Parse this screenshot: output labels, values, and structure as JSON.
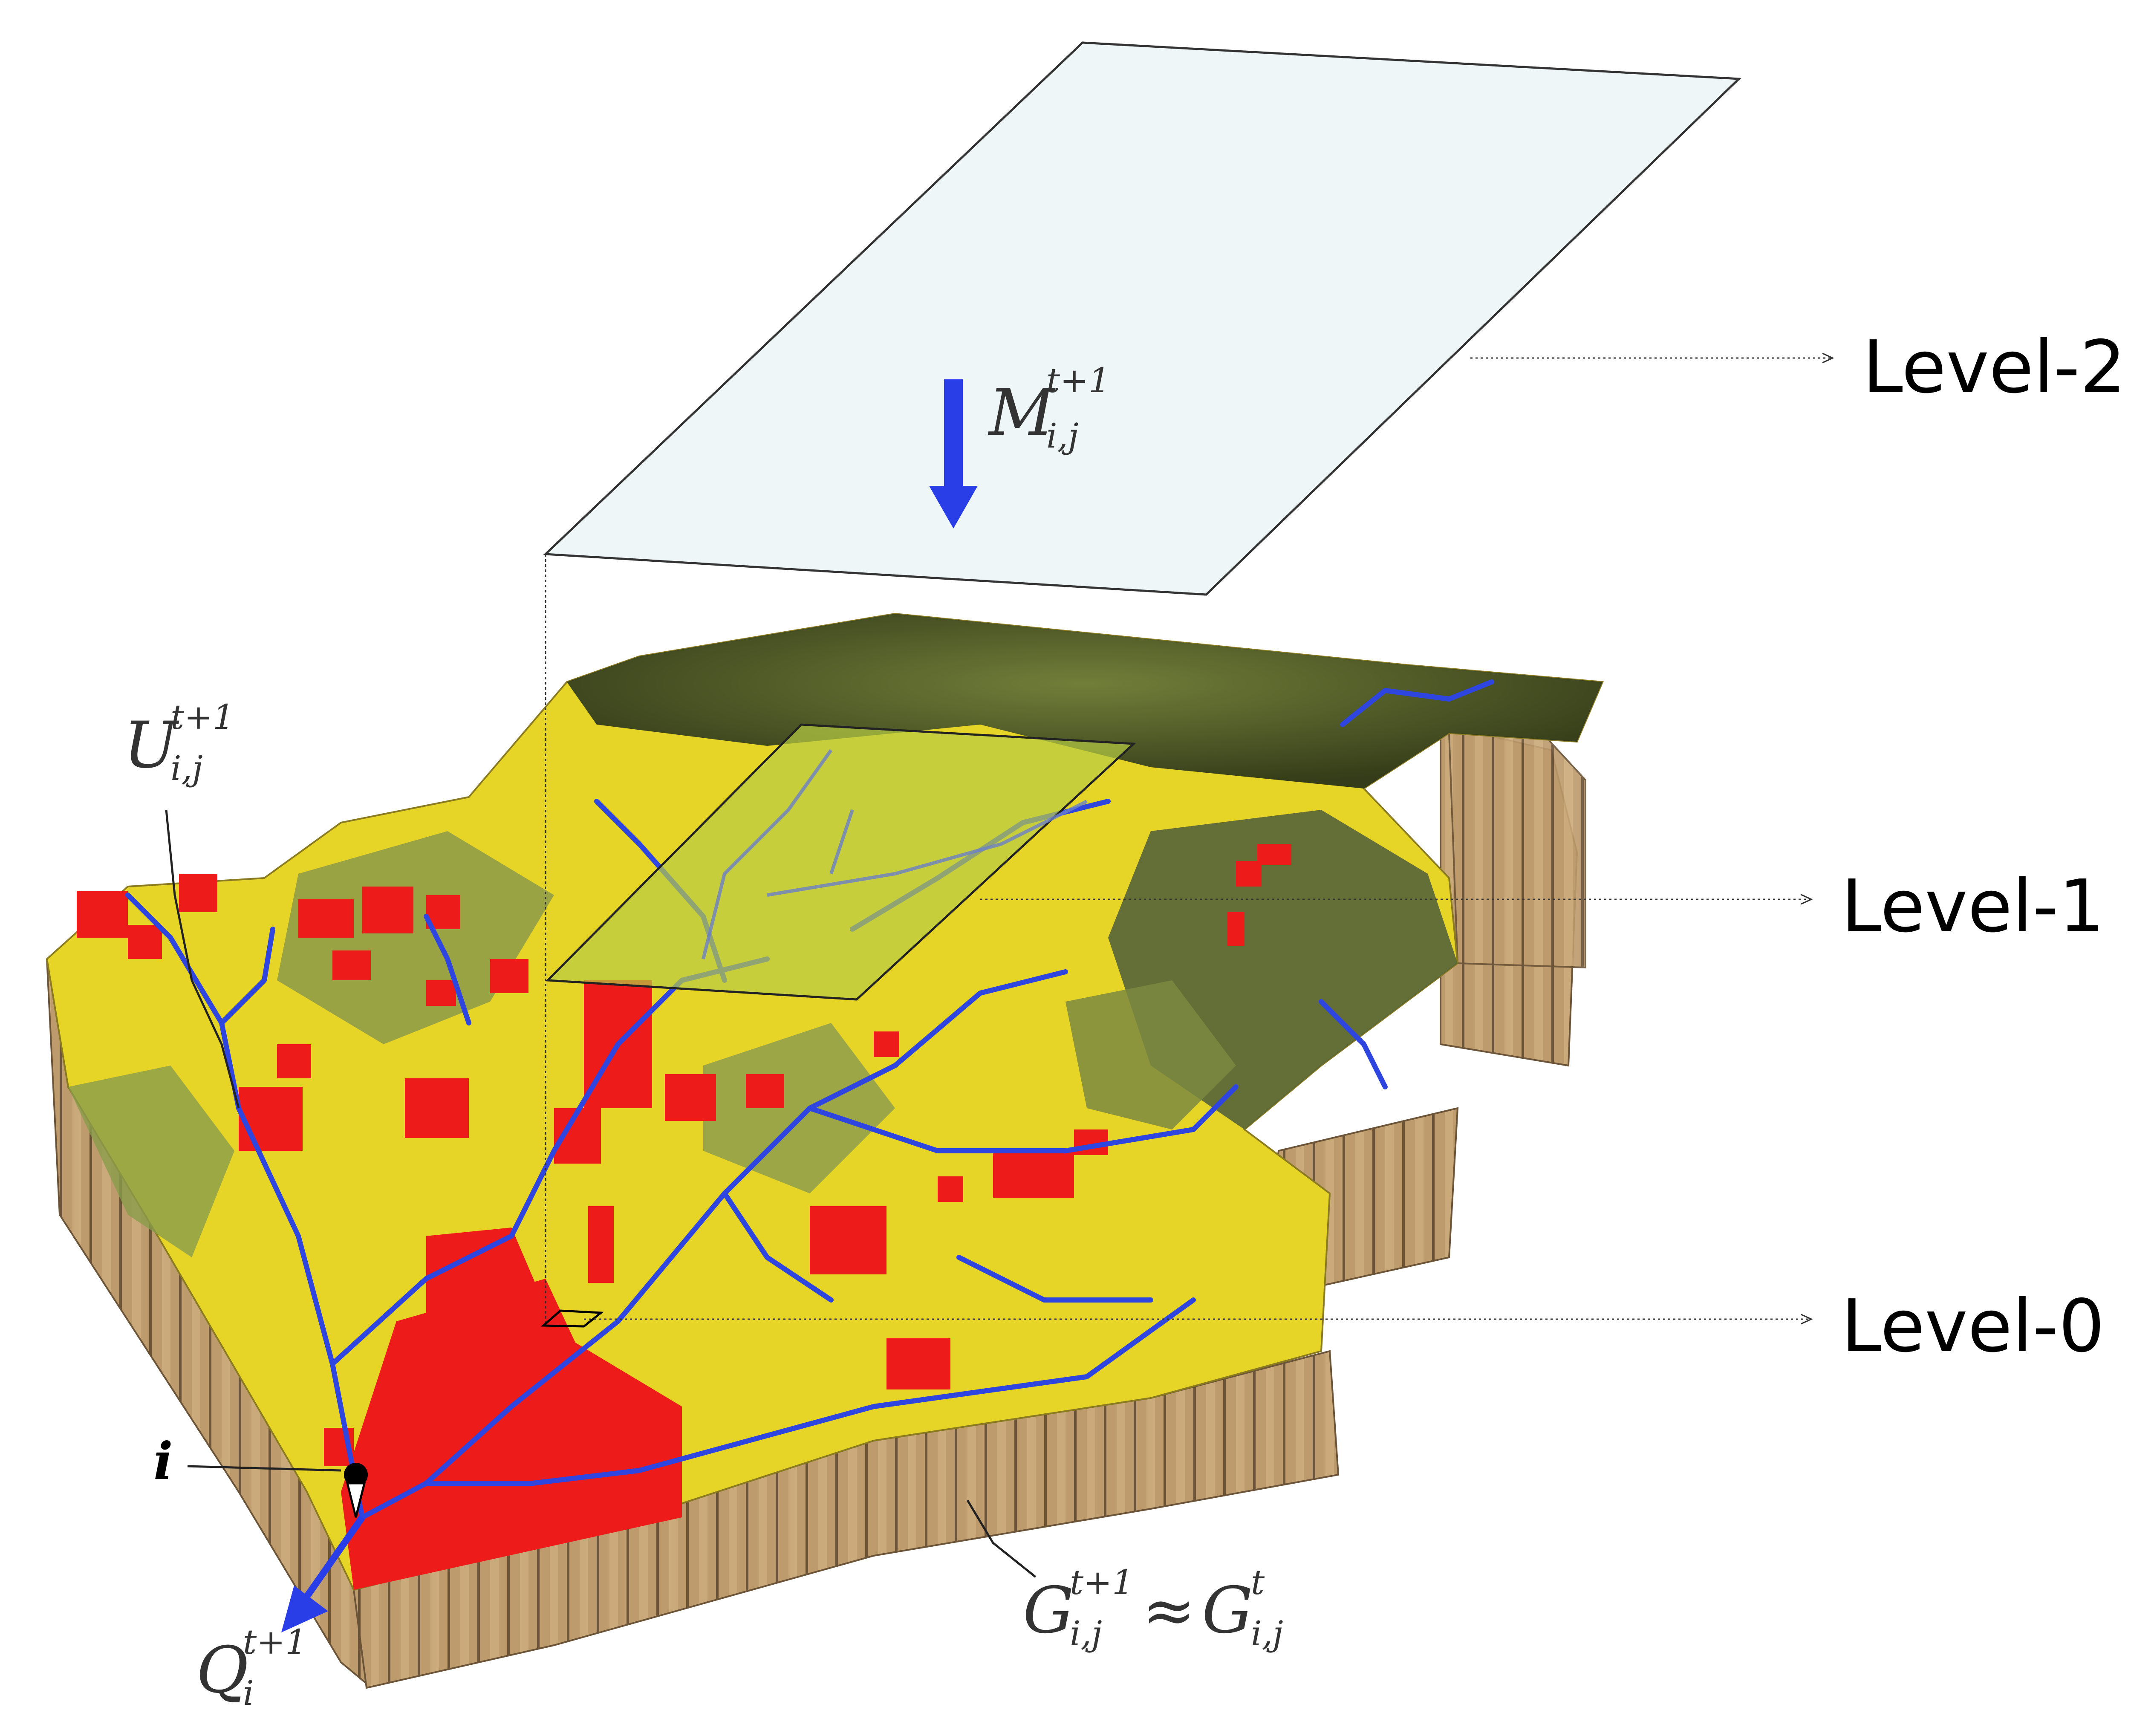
{
  "levels": {
    "level2": "Level-2",
    "level1": "Level-1",
    "level0": "Level-0"
  },
  "symbols": {
    "M": {
      "base": "M",
      "sup": "t+1",
      "sub": "i,j"
    },
    "U": {
      "base": "U",
      "sup": "t+1",
      "sub": "i,j"
    },
    "Q": {
      "base": "Q",
      "sup": "t+1",
      "sub": "i"
    },
    "G_lhs": {
      "base": "G",
      "sup": "t+1",
      "sub": "i,j"
    },
    "approx": "≈",
    "G_rhs": {
      "base": "G",
      "sup": "t",
      "sub": "i,j"
    },
    "i_marker": "i"
  },
  "colors": {
    "plane_fill": "#eef6f8",
    "arrow_blue": "#2a3ee8",
    "terrain_yellow": "#e8d823",
    "terrain_red": "#ee1b1b",
    "terrain_green": "#8c9a4a",
    "terrain_dark": "#3d4a22",
    "river": "#2f45e0",
    "wall": "#b9966a",
    "level1_patch": "#b8cc44"
  }
}
